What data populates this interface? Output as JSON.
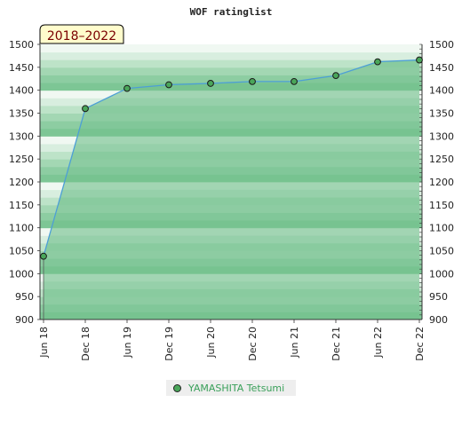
{
  "chart_data": {
    "type": "area",
    "title": "WOF ratinglist",
    "badge": "2018–2022",
    "x": [
      "Jun 18",
      "Dec 18",
      "Jun 19",
      "Dec 19",
      "Jun 20",
      "Dec 20",
      "Jun 21",
      "Dec 21",
      "Jun 22",
      "Dec 22"
    ],
    "series": [
      {
        "name": "YAMASHITA Tetsumi",
        "values": [
          1038,
          1360,
          1404,
          1412,
          1415,
          1419,
          1419,
          1432,
          1462,
          1466
        ]
      }
    ],
    "ylim": [
      900,
      1500
    ],
    "yticks": [
      900,
      950,
      1000,
      1050,
      1100,
      1150,
      1200,
      1250,
      1300,
      1350,
      1400,
      1450,
      1500
    ],
    "grid": false,
    "legend_position": "bottom",
    "colors": {
      "line": "#4d9fd6",
      "marker": "#4aa65a",
      "band_dark": "#7dc695",
      "band_light": "#f0f8f2"
    }
  }
}
